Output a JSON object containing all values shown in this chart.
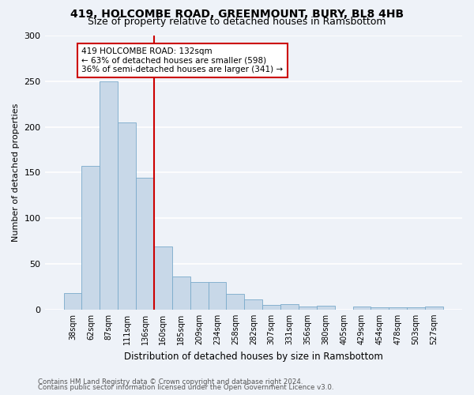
{
  "title1": "419, HOLCOMBE ROAD, GREENMOUNT, BURY, BL8 4HB",
  "title2": "Size of property relative to detached houses in Ramsbottom",
  "xlabel": "Distribution of detached houses by size in Ramsbottom",
  "ylabel": "Number of detached properties",
  "footnote1": "Contains HM Land Registry data © Crown copyright and database right 2024.",
  "footnote2": "Contains public sector information licensed under the Open Government Licence v3.0.",
  "annotation_line1": "419 HOLCOMBE ROAD: 132sqm",
  "annotation_line2": "← 63% of detached houses are smaller (598)",
  "annotation_line3": "36% of semi-detached houses are larger (341) →",
  "bar_labels": [
    "38sqm",
    "62sqm",
    "87sqm",
    "111sqm",
    "136sqm",
    "160sqm",
    "185sqm",
    "209sqm",
    "234sqm",
    "258sqm",
    "282sqm",
    "307sqm",
    "331sqm",
    "356sqm",
    "380sqm",
    "405sqm",
    "429sqm",
    "454sqm",
    "478sqm",
    "503sqm",
    "527sqm"
  ],
  "bar_values": [
    18,
    157,
    250,
    205,
    144,
    69,
    36,
    30,
    30,
    17,
    11,
    5,
    6,
    3,
    4,
    0,
    3,
    2,
    2,
    2,
    3
  ],
  "bar_color": "#c8d8e8",
  "bar_edge_color": "#7aaacb",
  "ref_line_index": 4,
  "ref_line_color": "#cc0000",
  "background_color": "#eef2f8",
  "grid_color": "#ffffff",
  "ylim": [
    0,
    300
  ],
  "yticks": [
    0,
    50,
    100,
    150,
    200,
    250,
    300
  ]
}
